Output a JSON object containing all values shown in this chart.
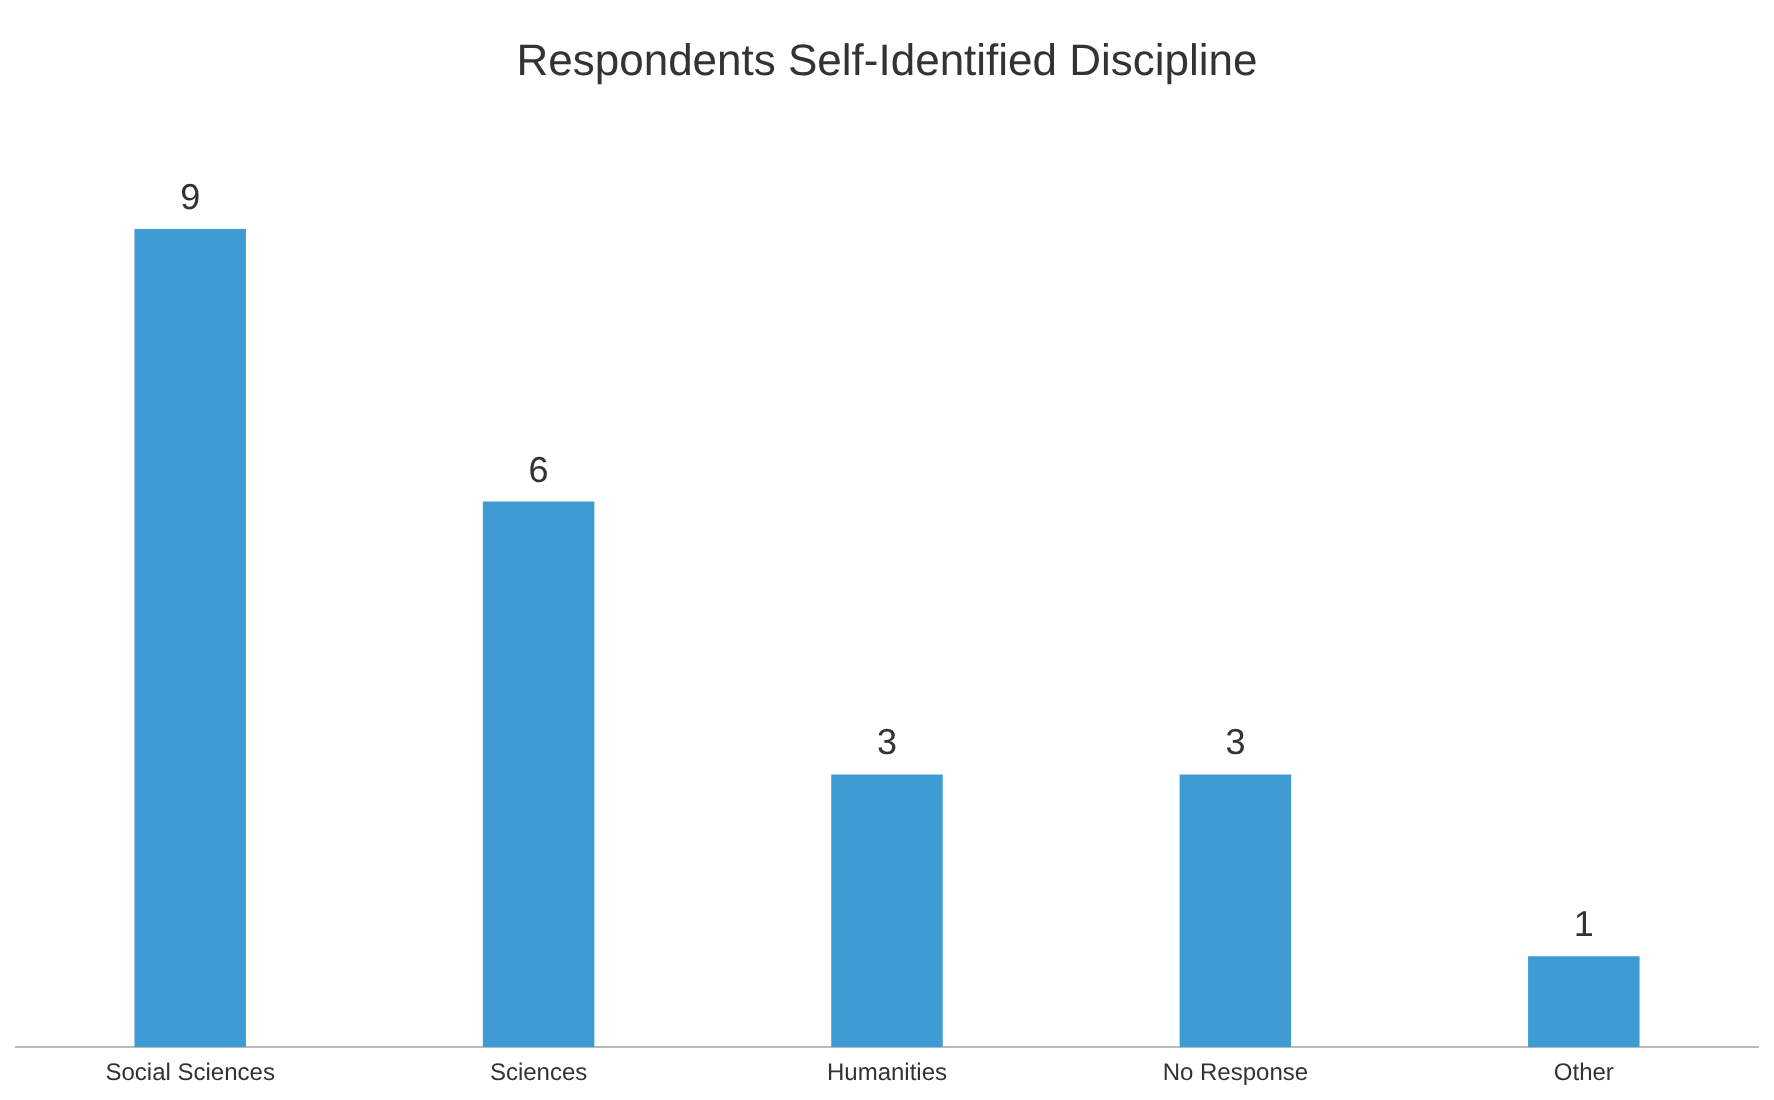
{
  "chart_data": {
    "type": "bar",
    "title": "Respondents Self-Identified Discipline",
    "categories": [
      "Social Sciences",
      "Sciences",
      "Humanities",
      "No Response",
      "Other"
    ],
    "values": [
      9,
      6,
      3,
      3,
      1
    ],
    "color": "#3e9bd3",
    "data_labels": true,
    "grid": false,
    "legend": false
  }
}
